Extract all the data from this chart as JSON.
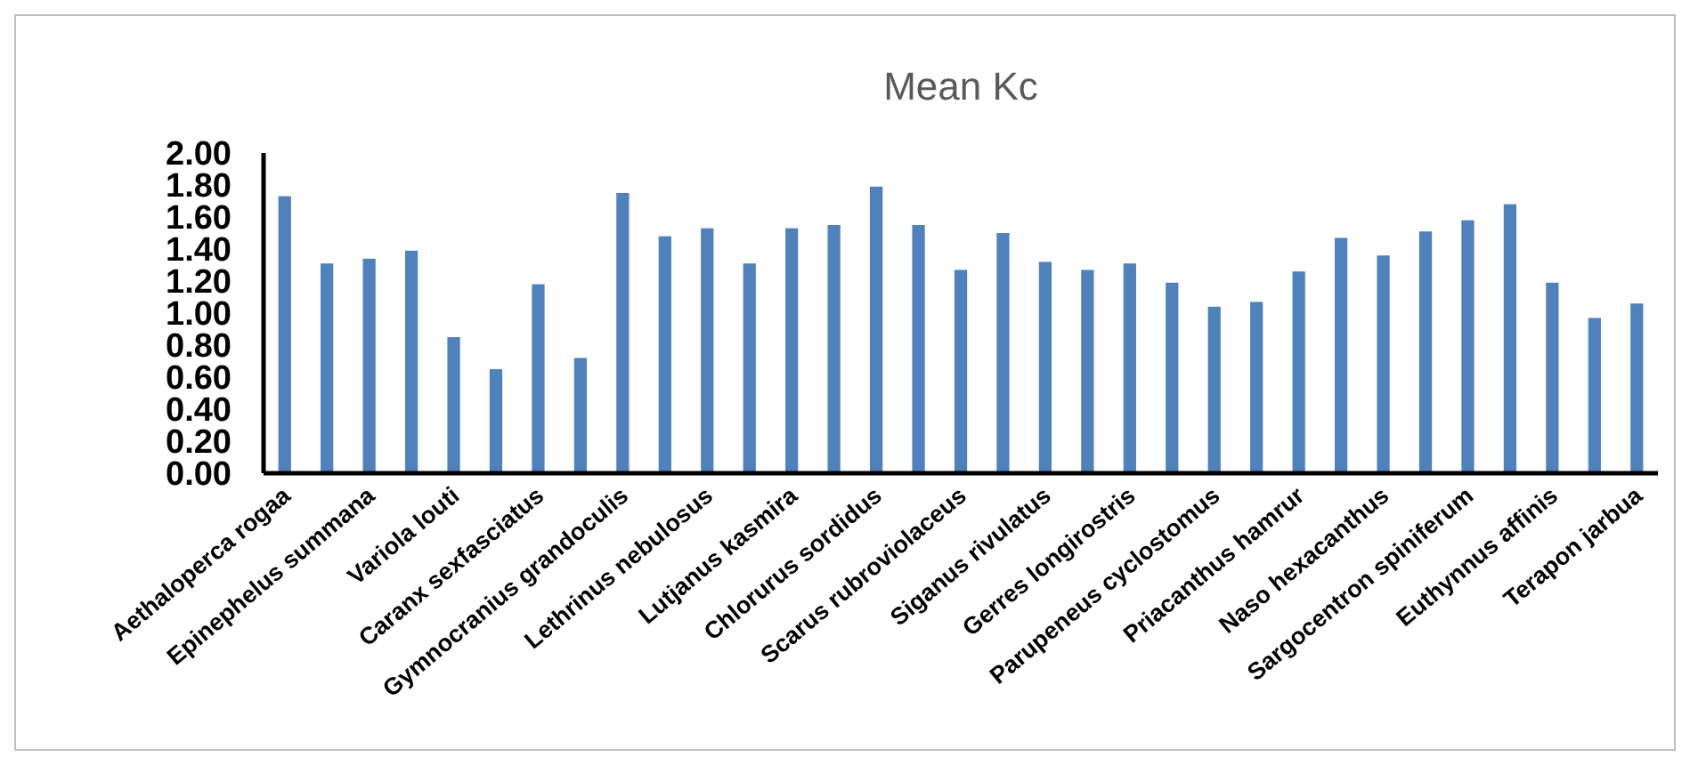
{
  "chart_data": {
    "type": "bar",
    "title": "Mean Kc",
    "categories": [
      "Aethaloperca rogaa",
      null,
      "Epinephelus summana",
      null,
      "Variola louti",
      null,
      "Caranx sexfasciatus",
      null,
      "Gymnocranius grandoculis",
      null,
      "Lethrinus nebulosus",
      null,
      "Lutjanus kasmira",
      null,
      "Chlorurus sordidus",
      null,
      "Scarus rubroviolaceus",
      null,
      "Siganus rivulatus",
      null,
      "Gerres longirostris",
      null,
      "Parupeneus cyclostomus",
      null,
      "Priacanthus hamrur",
      null,
      "Naso hexacanthus",
      null,
      "Sargocentron spiniferum",
      null,
      "Euthynnus affinis",
      null,
      "Terapon jarbua"
    ],
    "values": [
      1.73,
      1.31,
      1.34,
      1.39,
      0.85,
      0.65,
      1.18,
      0.72,
      1.75,
      1.48,
      1.53,
      1.31,
      1.53,
      1.55,
      1.79,
      1.55,
      1.27,
      1.5,
      1.32,
      1.27,
      1.31,
      1.19,
      1.04,
      1.07,
      1.26,
      1.47,
      1.36,
      1.51,
      1.58,
      1.68,
      1.19,
      0.97,
      1.06
    ],
    "color": "#4f81bd",
    "ylim": [
      0,
      2
    ],
    "yticks": [
      {
        "value": 0,
        "label": "0.00"
      },
      {
        "value": 0.2,
        "label": "0.20"
      },
      {
        "value": 0.4,
        "label": "0.40"
      },
      {
        "value": 0.6,
        "label": "0.60"
      },
      {
        "value": 0.8,
        "label": "0.80"
      },
      {
        "value": 1,
        "label": "1.00"
      },
      {
        "value": 1.2,
        "label": "1.20"
      },
      {
        "value": 1.4,
        "label": "1.40"
      },
      {
        "value": 1.6,
        "label": "1.60"
      },
      {
        "value": 1.8,
        "label": "1.80"
      },
      {
        "value": 2,
        "label": "2.00"
      }
    ]
  }
}
